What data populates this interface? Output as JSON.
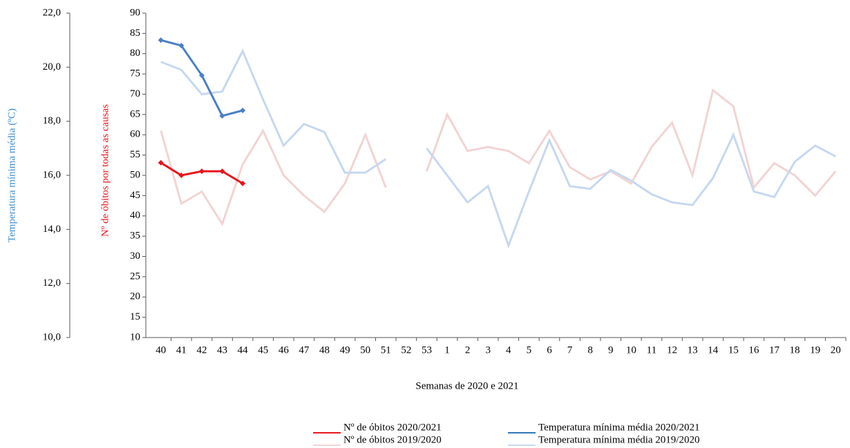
{
  "chart_data": {
    "type": "line",
    "xlabel": "Semanas de 2020 e 2021",
    "ylabel": "Nº de óbitos por todas as causas",
    "y2label": "Temperatura mínima média (ºC)",
    "categories": [
      "40",
      "41",
      "42",
      "43",
      "44",
      "45",
      "46",
      "47",
      "48",
      "49",
      "50",
      "51",
      "52",
      "53",
      "1",
      "2",
      "3",
      "4",
      "5",
      "6",
      "7",
      "8",
      "9",
      "10",
      "11",
      "12",
      "13",
      "14",
      "15",
      "16",
      "17",
      "18",
      "19",
      "20"
    ],
    "ylim": [
      10,
      90
    ],
    "yticks": [
      10,
      15,
      20,
      25,
      30,
      35,
      40,
      45,
      50,
      55,
      60,
      65,
      70,
      75,
      80,
      85,
      90
    ],
    "y2lim": [
      10,
      22
    ],
    "y2ticks": [
      {
        "value": 10,
        "label": "10,0"
      },
      {
        "value": 12,
        "label": "12,0"
      },
      {
        "value": 14,
        "label": "14,0"
      },
      {
        "value": 16,
        "label": "16,0"
      },
      {
        "value": 18,
        "label": "18,0"
      },
      {
        "value": 20,
        "label": "20,0"
      },
      {
        "value": 22,
        "label": "22,0"
      }
    ],
    "series": [
      {
        "name": "Nº de óbitos 2020/2021",
        "color": "#e8141b",
        "legend_color": "#e8141b",
        "markers": true,
        "values": [
          53.1,
          50,
          51,
          51,
          48,
          null,
          null,
          null,
          null,
          null,
          null,
          null,
          null,
          null,
          null,
          null,
          null,
          null,
          null,
          null,
          null,
          null,
          null,
          null,
          null,
          null,
          null,
          null,
          null,
          null,
          null,
          null,
          null,
          null
        ]
      },
      {
        "name": "Temperatura mínima média 2020/2021",
        "color": "#4a7fc6",
        "legend_color": "#2e75b6",
        "axis": "y2",
        "markers": true,
        "values": [
          21.0,
          20.8,
          19.7,
          18.2,
          18.4,
          null,
          null,
          null,
          null,
          null,
          null,
          null,
          null,
          null,
          null,
          null,
          null,
          null,
          null,
          null,
          null,
          null,
          null,
          null,
          null,
          null,
          null,
          null,
          null,
          null,
          null,
          null,
          null,
          null
        ]
      },
      {
        "name": "Nº de óbitos 2019/2020",
        "color": "#f2d3d3",
        "legend_color": "#f2d3d3",
        "markers": false,
        "values": [
          61,
          43,
          46,
          38,
          52.7,
          61,
          50,
          45,
          41,
          48,
          60,
          47,
          null,
          51,
          65,
          56,
          57,
          56,
          53,
          61,
          52,
          49,
          51,
          48,
          57,
          63,
          50,
          71,
          67,
          47,
          53,
          50,
          45,
          51
        ]
      },
      {
        "name": "Temperatura mínima média 2019/2020",
        "color": "#c6d8ef",
        "legend_color": "#c6d8ef",
        "axis": "y2",
        "markers": false,
        "values": [
          20.2,
          19.9,
          19.0,
          19.1,
          20.6,
          18.8,
          17.1,
          17.9,
          17.6,
          16.1,
          16.1,
          16.6,
          null,
          17.0,
          16.0,
          15.0,
          15.6,
          13.4,
          15.4,
          17.3,
          15.6,
          15.5,
          16.2,
          15.8,
          15.3,
          15.0,
          14.9,
          15.9,
          17.5,
          15.4,
          15.2,
          16.5,
          17.1,
          16.7
        ]
      }
    ]
  }
}
